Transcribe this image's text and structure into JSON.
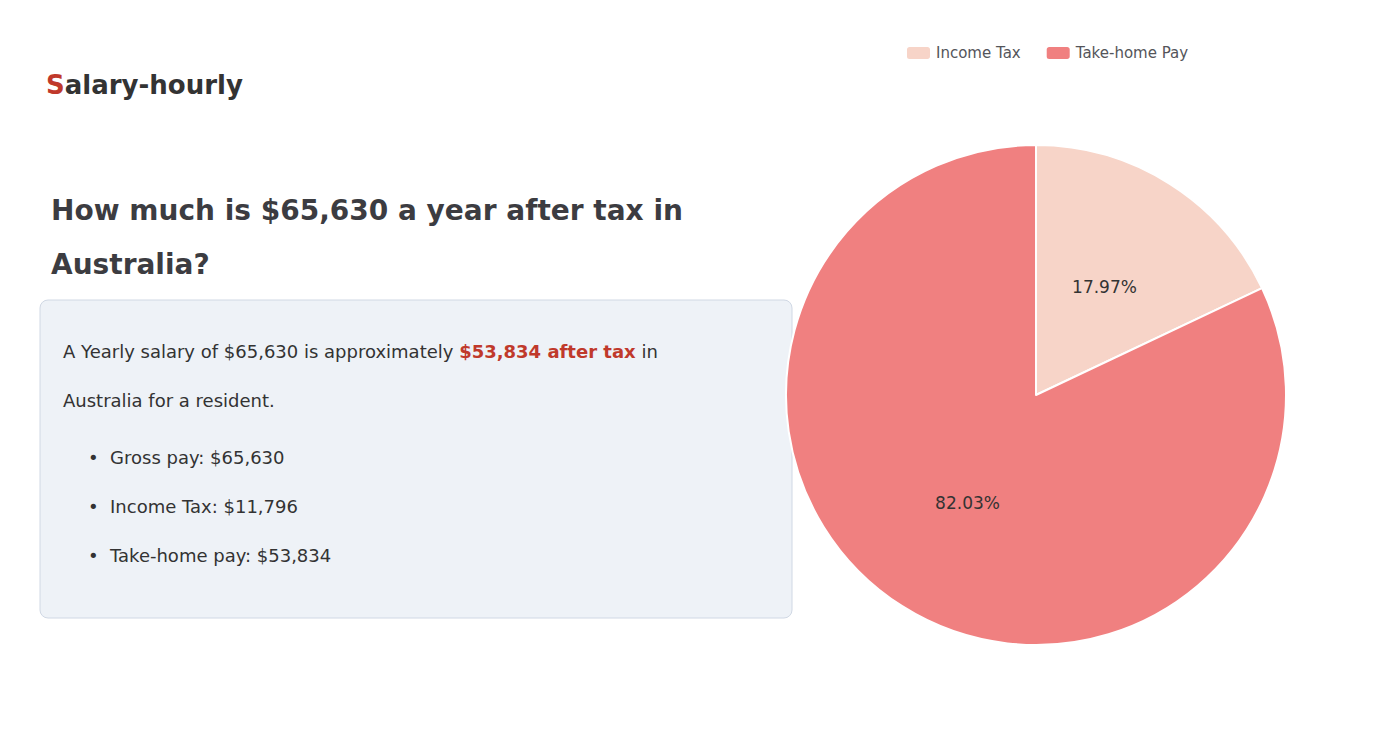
{
  "chart_data": {
    "type": "pie",
    "title": "How much is $65,630 a year after tax in\nAustralia?",
    "categories": [
      "Income Tax",
      "Take-home Pay"
    ],
    "values": [
      17.97,
      82.03
    ],
    "value_labels": [
      "17.97%",
      "82.03%"
    ],
    "colors": [
      "#f7d4c8",
      "#f08080"
    ],
    "data_labels": true,
    "legend": "top",
    "annotations": [
      [
        {
          "text": "S",
          "color": "#c0392b"
        },
        {
          "text": "alary-hourly"
        }
      ],
      [
        {
          "text": "A Yearly salary of $65,630 is approximately "
        },
        {
          "text": "$53,834 after tax",
          "color": "#c0392b"
        },
        {
          "text": " in"
        }
      ],
      [
        {
          "text": "Australia for a resident."
        }
      ],
      [
        {
          "text": "•  Gross pay: $65,630"
        }
      ],
      [
        {
          "text": "•  Income Tax: $11,796"
        }
      ],
      [
        {
          "text": "•  Take-home pay: $53,834"
        }
      ]
    ]
  }
}
